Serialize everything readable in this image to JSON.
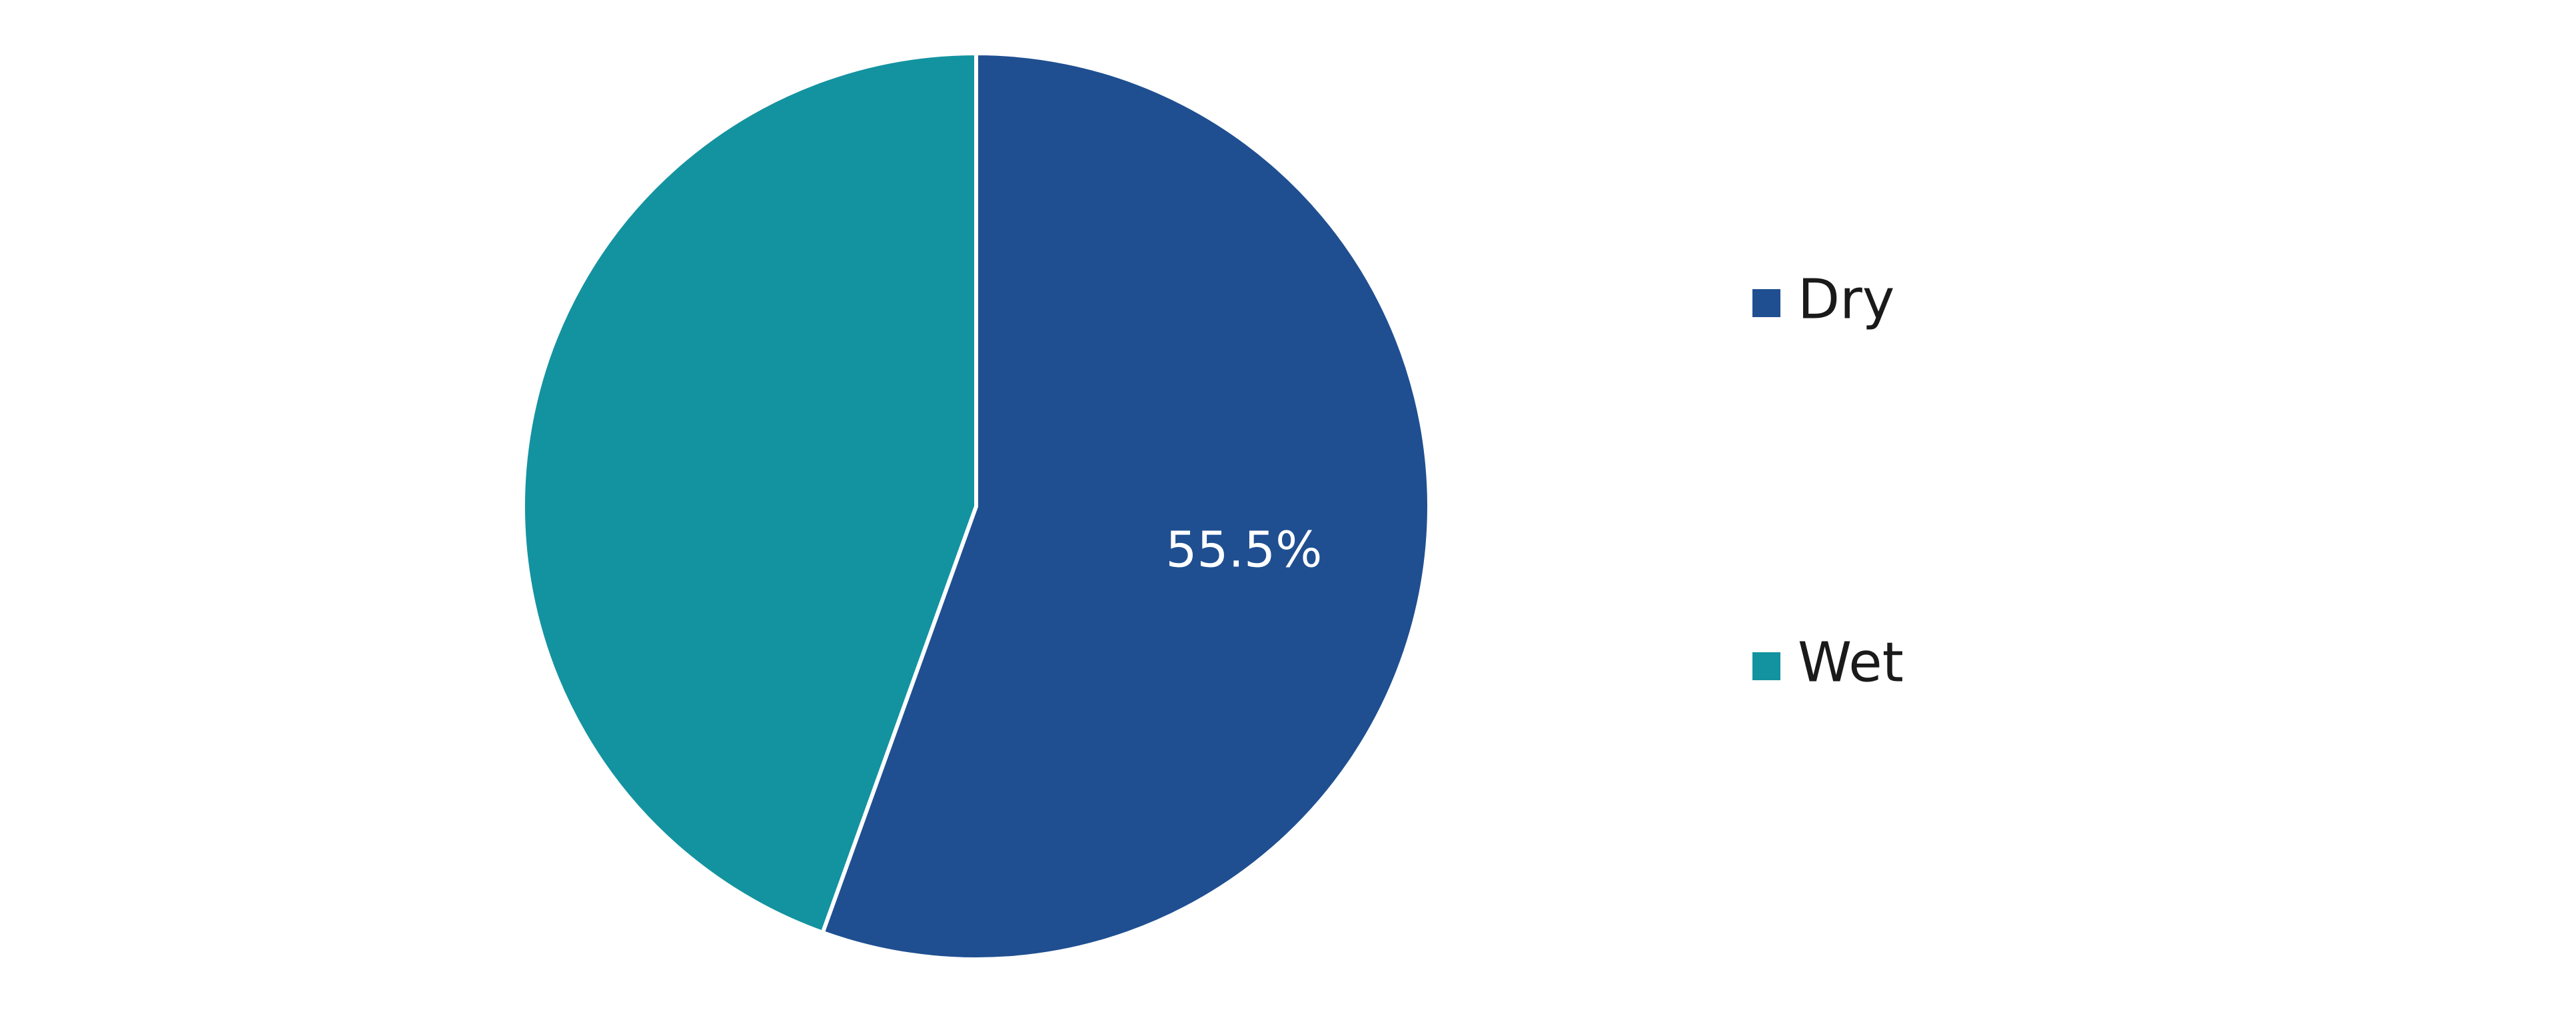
{
  "chart_data": {
    "type": "pie",
    "categories": [
      "Dry",
      "Wet"
    ],
    "values": [
      55.5,
      44.5
    ],
    "value_labels": [
      "55.5%",
      ""
    ],
    "colors": [
      "#1f4f91",
      "#1393a0"
    ],
    "start_angle_deg": 0,
    "direction": "clockwise",
    "legend_position": "right"
  }
}
